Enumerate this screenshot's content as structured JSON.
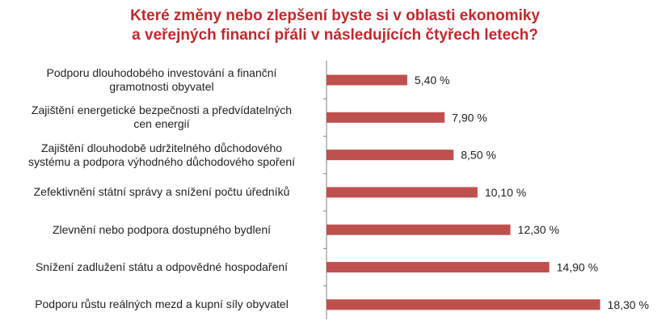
{
  "chart_data": {
    "type": "bar",
    "orientation": "horizontal",
    "title": [
      "Které změny nebo zlepšení byste si v oblasti ekonomiky",
      "a veřejných financí přáli v následujících čtyřech letech?"
    ],
    "categories": [
      "Podporu dlouhodobého investování a finanční gramotnosti obyvatel",
      "Zajištění energetické bezpečnosti a předvídatelných cen energií",
      "Zajištění dlouhodobě udržitelného důchodového systému a podpora výhodného důchodového spoření",
      "Zefektivnění státní správy a snížení počtu úředníků",
      "Zlevnění nebo podpora dostupného bydlení",
      "Snížení zadlužení státu a odpovědné hospodaření",
      "Podporu růstu reálných mezd a kupní síly obyvatel"
    ],
    "category_lines": [
      [
        "Podporu dlouhodobého investování a finanční",
        "gramotnosti obyvatel"
      ],
      [
        "Zajištění energetické bezpečnosti a předvídatelných",
        "cen energií"
      ],
      [
        "Zajištění dlouhodobě udržitelného důchodového",
        "systému a podpora výhodného důchodového spoření"
      ],
      [
        "Zefektivnění státní správy a snížení počtu úředníků"
      ],
      [
        "Zlevnění nebo podpora dostupného bydlení"
      ],
      [
        "Snížení zadlužení státu a odpovědné hospodaření"
      ],
      [
        "Podporu růstu reálných mezd a kupní síly obyvatel"
      ]
    ],
    "values": [
      5.4,
      7.9,
      8.5,
      10.1,
      12.3,
      14.9,
      18.3
    ],
    "value_labels": [
      "5,40 %",
      "7,90 %",
      "8,50 %",
      "10,10 %",
      "12,30 %",
      "14,90 %",
      "18,30 %"
    ],
    "xlim": [
      0,
      20
    ],
    "bar_color": "#c0504d",
    "axis_color": "#808080",
    "title_color": "#c0282d",
    "grid": false,
    "legend": "none"
  }
}
